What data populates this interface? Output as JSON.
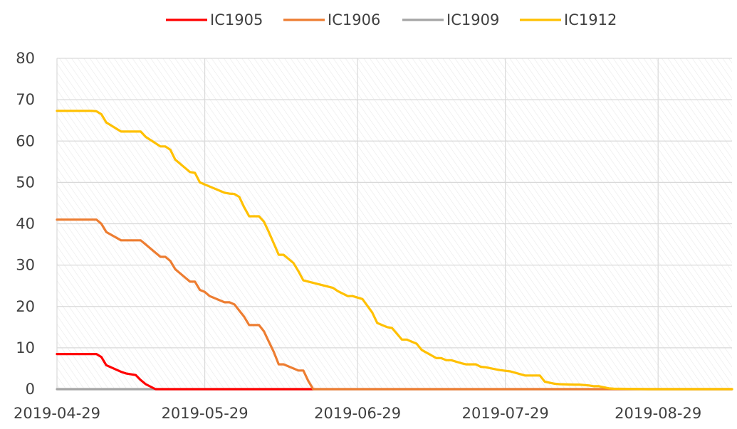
{
  "chart_data": {
    "type": "line",
    "title": "",
    "xlabel": "",
    "ylabel": "",
    "x_start": "2019-04-29",
    "x_end": "2019-09-13",
    "xlim": [
      "2019-04-29",
      "2019-09-13"
    ],
    "ylim": [
      0,
      80
    ],
    "y_ticks": [
      0,
      10,
      20,
      30,
      40,
      50,
      60,
      70,
      80
    ],
    "x_ticks": [
      "2019-04-29",
      "2019-05-29",
      "2019-06-29",
      "2019-07-29",
      "2019-08-29"
    ],
    "grid": true,
    "legend_position": "top",
    "series": [
      {
        "name": "IC1905",
        "color": "#ff0000",
        "x": [
          "2019-04-29",
          "2019-05-07",
          "2019-05-08",
          "2019-05-09",
          "2019-05-12",
          "2019-05-13",
          "2019-05-14",
          "2019-05-15",
          "2019-05-16",
          "2019-05-17",
          "2019-05-19",
          "2019-06-20"
        ],
        "values": [
          8.5,
          8.5,
          7.8,
          5.8,
          4.2,
          3.8,
          3.6,
          3.4,
          2.2,
          1.2,
          0,
          0
        ]
      },
      {
        "name": "IC1906",
        "color": "#ed7d31",
        "x": [
          "2019-04-29",
          "2019-05-07",
          "2019-05-08",
          "2019-05-09",
          "2019-05-12",
          "2019-05-13",
          "2019-05-16",
          "2019-05-17",
          "2019-05-20",
          "2019-05-21",
          "2019-05-22",
          "2019-05-23",
          "2019-05-26",
          "2019-05-27",
          "2019-05-28",
          "2019-05-29",
          "2019-05-30",
          "2019-06-02",
          "2019-06-03",
          "2019-06-04",
          "2019-06-06",
          "2019-06-07",
          "2019-06-09",
          "2019-06-10",
          "2019-06-11",
          "2019-06-12",
          "2019-06-13",
          "2019-06-14",
          "2019-06-17",
          "2019-06-18",
          "2019-06-19",
          "2019-06-20",
          "2019-09-13"
        ],
        "values": [
          41,
          41,
          40,
          38,
          36,
          36,
          36,
          35,
          32,
          32,
          31,
          29,
          26,
          26,
          24,
          23.5,
          22.5,
          21,
          21,
          20.5,
          17.5,
          15.5,
          15.5,
          14,
          11.5,
          9,
          6,
          6,
          4.5,
          4.5,
          2,
          0,
          0
        ]
      },
      {
        "name": "IC1909",
        "color": "#a5a5a5",
        "x": [
          "2019-04-29",
          "2019-09-13"
        ],
        "values": [
          0,
          0
        ]
      },
      {
        "name": "IC1912",
        "color": "#ffc000",
        "x": [
          "2019-04-29",
          "2019-05-06",
          "2019-05-07",
          "2019-05-08",
          "2019-05-09",
          "2019-05-12",
          "2019-05-13",
          "2019-05-16",
          "2019-05-17",
          "2019-05-20",
          "2019-05-21",
          "2019-05-22",
          "2019-05-23",
          "2019-05-26",
          "2019-05-27",
          "2019-05-28",
          "2019-05-29",
          "2019-06-02",
          "2019-06-03",
          "2019-06-04",
          "2019-06-05",
          "2019-06-06",
          "2019-06-07",
          "2019-06-09",
          "2019-06-10",
          "2019-06-11",
          "2019-06-13",
          "2019-06-14",
          "2019-06-16",
          "2019-06-17",
          "2019-06-18",
          "2019-06-24",
          "2019-06-25",
          "2019-06-27",
          "2019-06-28",
          "2019-06-30",
          "2019-07-02",
          "2019-07-03",
          "2019-07-05",
          "2019-07-06",
          "2019-07-08",
          "2019-07-09",
          "2019-07-11",
          "2019-07-12",
          "2019-07-15",
          "2019-07-16",
          "2019-07-17",
          "2019-07-18",
          "2019-07-20",
          "2019-07-21",
          "2019-07-23",
          "2019-07-24",
          "2019-07-25",
          "2019-07-27",
          "2019-07-28",
          "2019-07-30",
          "2019-08-02",
          "2019-08-03",
          "2019-08-05",
          "2019-08-06",
          "2019-08-08",
          "2019-08-09",
          "2019-08-12",
          "2019-08-13",
          "2019-08-15",
          "2019-08-16",
          "2019-08-17",
          "2019-08-19",
          "2019-08-20",
          "2019-08-27",
          "2019-08-28",
          "2019-08-29",
          "2019-09-13"
        ],
        "values": [
          67.3,
          67.3,
          67.2,
          66.5,
          64.5,
          62.3,
          62.3,
          62.3,
          61,
          58.7,
          58.7,
          57.9,
          55.5,
          52.5,
          52.3,
          50,
          49.5,
          47.5,
          47.3,
          47.2,
          46.5,
          44,
          41.8,
          41.8,
          40.5,
          38,
          32.5,
          32.5,
          30.5,
          28.5,
          26.3,
          24.5,
          23.7,
          22.5,
          22.5,
          21.8,
          18.5,
          16,
          15,
          14.8,
          12,
          12,
          11,
          9.5,
          7.5,
          7.5,
          7,
          7,
          6.3,
          6,
          6,
          5.4,
          5.3,
          4.8,
          4.6,
          4.3,
          3.3,
          3.3,
          3.3,
          1.8,
          1.3,
          1.2,
          1.1,
          1.1,
          0.9,
          0.7,
          0.7,
          0.2,
          0.1,
          0,
          0,
          0,
          0
        ]
      }
    ]
  }
}
